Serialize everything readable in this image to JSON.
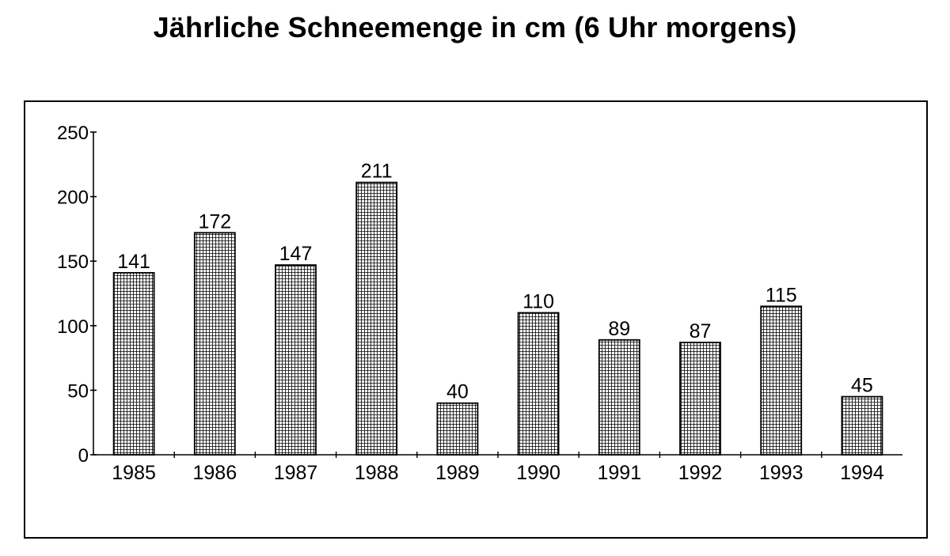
{
  "chart_data": {
    "type": "bar",
    "title": "Jährliche Schneemenge in cm (6 Uhr morgens)",
    "xlabel": "",
    "ylabel": "",
    "categories": [
      "1985",
      "1986",
      "1987",
      "1988",
      "1989",
      "1990",
      "1991",
      "1992",
      "1993",
      "1994"
    ],
    "values": [
      141,
      172,
      147,
      211,
      40,
      110,
      89,
      87,
      115,
      45
    ],
    "data_labels": [
      "141",
      "172",
      "147",
      "211",
      "40",
      "110",
      "89",
      "87",
      "115",
      "45"
    ],
    "ylim": [
      0,
      250
    ],
    "yticks": [
      0,
      50,
      100,
      150,
      200,
      250
    ],
    "ytick_labels": [
      "0",
      "50",
      "100",
      "150",
      "200",
      "250"
    ],
    "grid": false,
    "legend": "none",
    "bar_pattern": "crosshatch-grid",
    "colors": {
      "bar_fill": "#ffffff",
      "bar_hatch": "#000000",
      "frame": "#000000"
    }
  }
}
